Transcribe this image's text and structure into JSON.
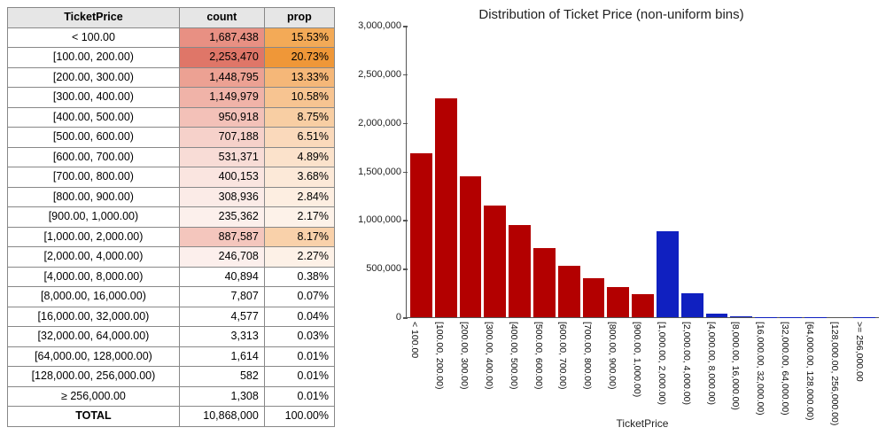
{
  "table": {
    "headers": [
      "TicketPrice",
      "count",
      "prop"
    ],
    "rows": [
      {
        "label": "< 100.00",
        "count": "1,687,438",
        "prop": "15.53%",
        "count_bg": "#e89083",
        "prop_bg": "#f3aa57"
      },
      {
        "label": "[100.00, 200.00)",
        "count": "2,253,470",
        "prop": "20.73%",
        "count_bg": "#df7668",
        "prop_bg": "#ef9738"
      },
      {
        "label": "[200.00, 300.00)",
        "count": "1,448,795",
        "prop": "13.33%",
        "count_bg": "#eca193",
        "prop_bg": "#f5b778"
      },
      {
        "label": "[300.00, 400.00)",
        "count": "1,149,979",
        "prop": "10.58%",
        "count_bg": "#f0b3a8",
        "prop_bg": "#f7c491"
      },
      {
        "label": "[400.00, 500.00)",
        "count": "950,918",
        "prop": "8.75%",
        "count_bg": "#f3c1b8",
        "prop_bg": "#f8cea3"
      },
      {
        "label": "[500.00, 600.00)",
        "count": "707,188",
        "prop": "6.51%",
        "count_bg": "#f6d1ca",
        "prop_bg": "#fad9bb"
      },
      {
        "label": "[600.00, 700.00)",
        "count": "531,371",
        "prop": "4.89%",
        "count_bg": "#f8dcd6",
        "prop_bg": "#fbe2cb"
      },
      {
        "label": "[700.00, 800.00)",
        "count": "400,153",
        "prop": "3.68%",
        "count_bg": "#fae5e0",
        "prop_bg": "#fce9d8"
      },
      {
        "label": "[800.00, 900.00)",
        "count": "308,936",
        "prop": "2.84%",
        "count_bg": "#fbebe7",
        "prop_bg": "#fdeee1"
      },
      {
        "label": "[900.00, 1,000.00)",
        "count": "235,362",
        "prop": "2.17%",
        "count_bg": "#fcf0ec",
        "prop_bg": "#fdf2e9"
      },
      {
        "label": "[1,000.00, 2,000.00)",
        "count": "887,587",
        "prop": "8.17%",
        "count_bg": "#f4c6bd",
        "prop_bg": "#f9d1aa"
      },
      {
        "label": "[2,000.00, 4,000.00)",
        "count": "246,708",
        "prop": "2.27%",
        "count_bg": "#fcefec",
        "prop_bg": "#fdf1e7"
      },
      {
        "label": "[4,000.00, 8,000.00)",
        "count": "40,894",
        "prop": "0.38%",
        "count_bg": "#ffffff",
        "prop_bg": "#ffffff"
      },
      {
        "label": "[8,000.00, 16,000.00)",
        "count": "7,807",
        "prop": "0.07%",
        "count_bg": "#ffffff",
        "prop_bg": "#ffffff"
      },
      {
        "label": "[16,000.00, 32,000.00)",
        "count": "4,577",
        "prop": "0.04%",
        "count_bg": "#ffffff",
        "prop_bg": "#ffffff"
      },
      {
        "label": "[32,000.00, 64,000.00)",
        "count": "3,313",
        "prop": "0.03%",
        "count_bg": "#ffffff",
        "prop_bg": "#ffffff"
      },
      {
        "label": "[64,000.00, 128,000.00)",
        "count": "1,614",
        "prop": "0.01%",
        "count_bg": "#ffffff",
        "prop_bg": "#ffffff"
      },
      {
        "label": "[128,000.00, 256,000.00)",
        "count": "582",
        "prop": "0.01%",
        "count_bg": "#ffffff",
        "prop_bg": "#ffffff"
      },
      {
        "label": "≥ 256,000.00",
        "count": "1,308",
        "prop": "0.01%",
        "count_bg": "#ffffff",
        "prop_bg": "#ffffff"
      }
    ],
    "total": {
      "label": "TOTAL",
      "count": "10,868,000",
      "prop": "100.00%"
    }
  },
  "chart": {
    "title": "Distribution of Ticket Price (non-uniform bins)",
    "xaxis_title": "TicketPrice",
    "ylim_max": 3000000,
    "yticks": [
      {
        "v": 0,
        "label": "0"
      },
      {
        "v": 500000,
        "label": "500,000"
      },
      {
        "v": 1000000,
        "label": "1,000,000"
      },
      {
        "v": 1500000,
        "label": "1,500,000"
      },
      {
        "v": 2000000,
        "label": "2,000,000"
      },
      {
        "v": 2500000,
        "label": "2,500,000"
      },
      {
        "v": 3000000,
        "label": "3,000,000"
      }
    ],
    "bars": [
      {
        "label": "< 100.00",
        "value": 1687438,
        "color": "#b30000"
      },
      {
        "label": "[100.00, 200.00)",
        "value": 2253470,
        "color": "#b30000"
      },
      {
        "label": "[200.00, 300.00)",
        "value": 1448795,
        "color": "#b30000"
      },
      {
        "label": "[300.00, 400.00)",
        "value": 1149979,
        "color": "#b30000"
      },
      {
        "label": "[400.00, 500.00)",
        "value": 950918,
        "color": "#b30000"
      },
      {
        "label": "[500.00, 600.00)",
        "value": 707188,
        "color": "#b30000"
      },
      {
        "label": "[600.00, 700.00)",
        "value": 531371,
        "color": "#b30000"
      },
      {
        "label": "[700.00, 800.00)",
        "value": 400153,
        "color": "#b30000"
      },
      {
        "label": "[800.00, 900.00)",
        "value": 308936,
        "color": "#b30000"
      },
      {
        "label": "[900.00, 1,000.00)",
        "value": 235362,
        "color": "#b30000"
      },
      {
        "label": "[1,000.00, 2,000.00)",
        "value": 887587,
        "color": "#1020c0"
      },
      {
        "label": "[2,000.00, 4,000.00)",
        "value": 246708,
        "color": "#1020c0"
      },
      {
        "label": "[4,000.00, 8,000.00)",
        "value": 40894,
        "color": "#1020c0"
      },
      {
        "label": "[8,000.00, 16,000.00)",
        "value": 7807,
        "color": "#1020c0"
      },
      {
        "label": "[16,000.00, 32,000.00)",
        "value": 4577,
        "color": "#1020c0"
      },
      {
        "label": "[32,000.00, 64,000.00)",
        "value": 3313,
        "color": "#1020c0"
      },
      {
        "label": "[64,000.00, 128,000.00)",
        "value": 1614,
        "color": "#1020c0"
      },
      {
        "label": "[128,000.00, 256,000.00)",
        "value": 582,
        "color": "#1020c0"
      },
      {
        "label": ">= 256,000.00",
        "value": 1308,
        "color": "#1020c0"
      }
    ]
  }
}
